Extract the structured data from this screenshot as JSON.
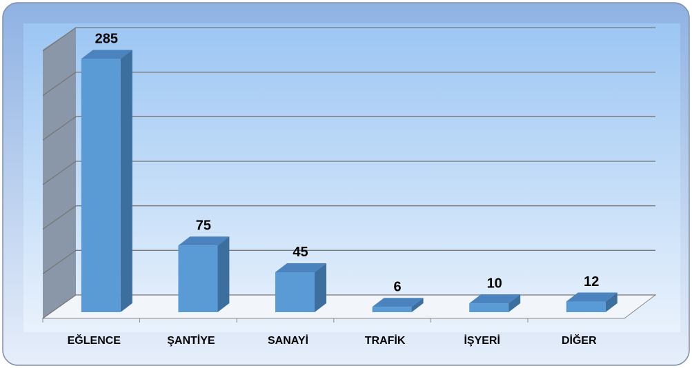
{
  "chart_data": {
    "type": "bar3d",
    "categories": [
      "EĞLENCE",
      "ŞANTİYE",
      "SANAYİ",
      "TRAFİK",
      "İŞYERİ",
      "DİĞER"
    ],
    "values": [
      285,
      75,
      45,
      6,
      10,
      12
    ],
    "color": "#5b9bd5",
    "ylim": [
      0,
      300
    ],
    "yticks": [
      0,
      50,
      100,
      150,
      200,
      250,
      300
    ],
    "grid": true
  }
}
